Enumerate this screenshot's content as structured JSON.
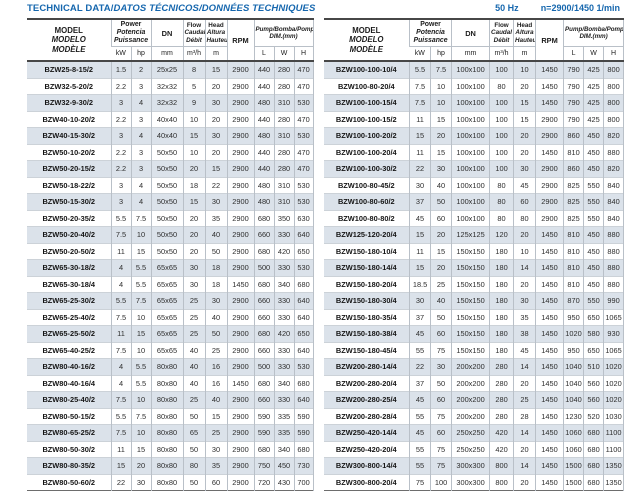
{
  "page": {
    "title_part1": "TECHNICAL DATA/",
    "title_part2": "DATOS TÉCNICOS/DONNÉES TECHNIQUES",
    "frequency": "50 Hz",
    "speed": "n=2900/1450 1/min",
    "accent_color": "#1667ae",
    "stripe_color": "#dbe2ea"
  },
  "table_header": {
    "model": [
      "MODEL",
      "MODELO",
      "MODÈLE"
    ],
    "power": [
      "Power",
      "Potencia",
      "Puissance"
    ],
    "dn": "DN",
    "flow": [
      "Flow",
      "Caudal",
      "Débit"
    ],
    "head": [
      "Head",
      "Altura",
      "Hauteur"
    ],
    "rpm": "RPM",
    "pump_dim": [
      "Pump/Bomba/Pompe",
      "DIM.(mm)"
    ],
    "units": {
      "kw": "kW",
      "hp": "hp",
      "mm": "mm",
      "flow": "m³/h",
      "head": "m",
      "rpm": "",
      "l": "L",
      "w": "W",
      "h": "H"
    }
  },
  "tables": {
    "left": {
      "rows": [
        [
          "BZW25-8-15/2",
          "1.5",
          "2",
          "25x25",
          "8",
          "15",
          "2900",
          "440",
          "280",
          "470"
        ],
        [
          "BZW32-5-20/2",
          "2.2",
          "3",
          "32x32",
          "5",
          "20",
          "2900",
          "440",
          "280",
          "470"
        ],
        [
          "BZW32-9-30/2",
          "3",
          "4",
          "32x32",
          "9",
          "30",
          "2900",
          "480",
          "310",
          "530"
        ],
        [
          "BZW40-10-20/2",
          "2.2",
          "3",
          "40x40",
          "10",
          "20",
          "2900",
          "440",
          "280",
          "470"
        ],
        [
          "BZW40-15-30/2",
          "3",
          "4",
          "40x40",
          "15",
          "30",
          "2900",
          "480",
          "310",
          "530"
        ],
        [
          "BZW50-10-20/2",
          "2.2",
          "3",
          "50x50",
          "10",
          "20",
          "2900",
          "440",
          "280",
          "470"
        ],
        [
          "BZW50-20-15/2",
          "2.2",
          "3",
          "50x50",
          "20",
          "15",
          "2900",
          "440",
          "280",
          "470"
        ],
        [
          "BZW50-18-22/2",
          "3",
          "4",
          "50x50",
          "18",
          "22",
          "2900",
          "480",
          "310",
          "530"
        ],
        [
          "BZW50-15-30/2",
          "3",
          "4",
          "50x50",
          "15",
          "30",
          "2900",
          "480",
          "310",
          "530"
        ],
        [
          "BZW50-20-35/2",
          "5.5",
          "7.5",
          "50x50",
          "20",
          "35",
          "2900",
          "680",
          "350",
          "630"
        ],
        [
          "BZW50-20-40/2",
          "7.5",
          "10",
          "50x50",
          "20",
          "40",
          "2900",
          "660",
          "330",
          "640"
        ],
        [
          "BZW50-20-50/2",
          "11",
          "15",
          "50x50",
          "20",
          "50",
          "2900",
          "680",
          "420",
          "650"
        ],
        [
          "BZW65-30-18/2",
          "4",
          "5.5",
          "65x65",
          "30",
          "18",
          "2900",
          "500",
          "330",
          "530"
        ],
        [
          "BZW65-30-18/4",
          "4",
          "5.5",
          "65x65",
          "30",
          "18",
          "1450",
          "680",
          "340",
          "680"
        ],
        [
          "BZW65-25-30/2",
          "5.5",
          "7.5",
          "65x65",
          "25",
          "30",
          "2900",
          "660",
          "330",
          "640"
        ],
        [
          "BZW65-25-40/2",
          "7.5",
          "10",
          "65x65",
          "25",
          "40",
          "2900",
          "660",
          "330",
          "640"
        ],
        [
          "BZW65-25-50/2",
          "11",
          "15",
          "65x65",
          "25",
          "50",
          "2900",
          "680",
          "420",
          "650"
        ],
        [
          "BZW65-40-25/2",
          "7.5",
          "10",
          "65x65",
          "40",
          "25",
          "2900",
          "660",
          "330",
          "640"
        ],
        [
          "BZW80-40-16/2",
          "4",
          "5.5",
          "80x80",
          "40",
          "16",
          "2900",
          "500",
          "330",
          "530"
        ],
        [
          "BZW80-40-16/4",
          "4",
          "5.5",
          "80x80",
          "40",
          "16",
          "1450",
          "680",
          "340",
          "680"
        ],
        [
          "BZW80-25-40/2",
          "7.5",
          "10",
          "80x80",
          "25",
          "40",
          "2900",
          "660",
          "330",
          "640"
        ],
        [
          "BZW80-50-15/2",
          "5.5",
          "7.5",
          "80x80",
          "50",
          "15",
          "2900",
          "590",
          "335",
          "590"
        ],
        [
          "BZW80-65-25/2",
          "7.5",
          "10",
          "80x80",
          "65",
          "25",
          "2900",
          "590",
          "335",
          "590"
        ],
        [
          "BZW80-50-30/2",
          "11",
          "15",
          "80x80",
          "50",
          "30",
          "2900",
          "680",
          "340",
          "680"
        ],
        [
          "BZW80-80-35/2",
          "15",
          "20",
          "80x80",
          "80",
          "35",
          "2900",
          "750",
          "450",
          "730"
        ],
        [
          "BZW80-50-60/2",
          "22",
          "30",
          "80x80",
          "50",
          "60",
          "2900",
          "720",
          "430",
          "700"
        ]
      ]
    },
    "right": {
      "rows": [
        [
          "BZW100-100-10/4",
          "5.5",
          "7.5",
          "100x100",
          "100",
          "10",
          "1450",
          "790",
          "425",
          "800"
        ],
        [
          "BZW100-80-20/4",
          "7.5",
          "10",
          "100x100",
          "80",
          "20",
          "1450",
          "790",
          "425",
          "800"
        ],
        [
          "BZW100-100-15/4",
          "7.5",
          "10",
          "100x100",
          "100",
          "15",
          "1450",
          "790",
          "425",
          "800"
        ],
        [
          "BZW100-100-15/2",
          "11",
          "15",
          "100x100",
          "100",
          "15",
          "2900",
          "790",
          "425",
          "800"
        ],
        [
          "BZW100-100-20/2",
          "15",
          "20",
          "100x100",
          "100",
          "20",
          "2900",
          "860",
          "450",
          "820"
        ],
        [
          "BZW100-100-20/4",
          "11",
          "15",
          "100x100",
          "100",
          "20",
          "1450",
          "810",
          "450",
          "880"
        ],
        [
          "BZW100-100-30/2",
          "22",
          "30",
          "100x100",
          "100",
          "30",
          "2900",
          "860",
          "450",
          "820"
        ],
        [
          "BZW100-80-45/2",
          "30",
          "40",
          "100x100",
          "80",
          "45",
          "2900",
          "825",
          "550",
          "840"
        ],
        [
          "BZW100-80-60/2",
          "37",
          "50",
          "100x100",
          "80",
          "60",
          "2900",
          "825",
          "550",
          "840"
        ],
        [
          "BZW100-80-80/2",
          "45",
          "60",
          "100x100",
          "80",
          "80",
          "2900",
          "825",
          "550",
          "840"
        ],
        [
          "BZW125-120-20/4",
          "15",
          "20",
          "125x125",
          "120",
          "20",
          "1450",
          "810",
          "450",
          "880"
        ],
        [
          "BZW150-180-10/4",
          "11",
          "15",
          "150x150",
          "180",
          "10",
          "1450",
          "810",
          "450",
          "880"
        ],
        [
          "BZW150-180-14/4",
          "15",
          "20",
          "150x150",
          "180",
          "14",
          "1450",
          "810",
          "450",
          "880"
        ],
        [
          "BZW150-180-20/4",
          "18.5",
          "25",
          "150x150",
          "180",
          "20",
          "1450",
          "810",
          "450",
          "880"
        ],
        [
          "BZW150-180-30/4",
          "30",
          "40",
          "150x150",
          "180",
          "30",
          "1450",
          "870",
          "550",
          "990"
        ],
        [
          "BZW150-180-35/4",
          "37",
          "50",
          "150x150",
          "180",
          "35",
          "1450",
          "950",
          "650",
          "1065"
        ],
        [
          "BZW150-180-38/4",
          "45",
          "60",
          "150x150",
          "180",
          "38",
          "1450",
          "1020",
          "580",
          "930"
        ],
        [
          "BZW150-180-45/4",
          "55",
          "75",
          "150x150",
          "180",
          "45",
          "1450",
          "950",
          "650",
          "1065"
        ],
        [
          "BZW200-280-14/4",
          "22",
          "30",
          "200x200",
          "280",
          "14",
          "1450",
          "1040",
          "510",
          "1020"
        ],
        [
          "BZW200-280-20/4",
          "37",
          "50",
          "200x200",
          "280",
          "20",
          "1450",
          "1040",
          "560",
          "1020"
        ],
        [
          "BZW200-280-25/4",
          "45",
          "60",
          "200x200",
          "280",
          "25",
          "1450",
          "1040",
          "560",
          "1020"
        ],
        [
          "BZW200-280-28/4",
          "55",
          "75",
          "200x200",
          "280",
          "28",
          "1450",
          "1230",
          "520",
          "1030"
        ],
        [
          "BZW250-420-14/4",
          "45",
          "60",
          "250x250",
          "420",
          "14",
          "1450",
          "1060",
          "680",
          "1100"
        ],
        [
          "BZW250-420-20/4",
          "55",
          "75",
          "250x250",
          "420",
          "20",
          "1450",
          "1060",
          "680",
          "1100"
        ],
        [
          "BZW300-800-14/4",
          "55",
          "75",
          "300x300",
          "800",
          "14",
          "1450",
          "1500",
          "680",
          "1350"
        ],
        [
          "BZW300-800-20/4",
          "75",
          "100",
          "300x300",
          "800",
          "20",
          "1450",
          "1500",
          "680",
          "1350"
        ]
      ]
    }
  }
}
